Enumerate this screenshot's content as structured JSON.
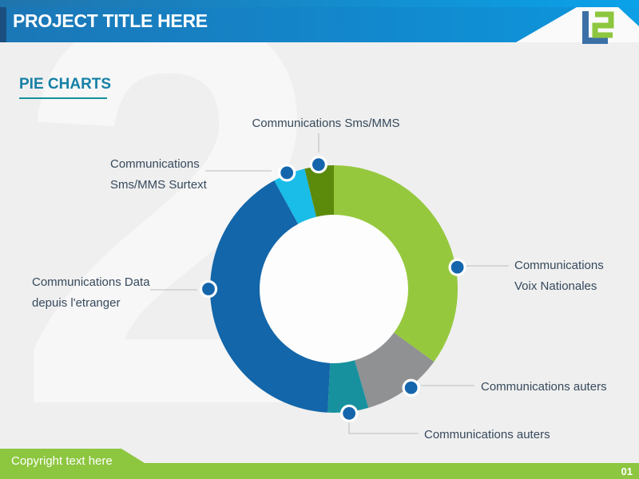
{
  "header": {
    "title": "PROJECT TITLE HERE",
    "logo": {
      "name": "L2 logo",
      "l_color": "#3b70a7",
      "two_color": "#8dc63f"
    }
  },
  "page": {
    "heading": "PIE CHARTS",
    "heading_color": "#1480a5",
    "background_color": "#efefef"
  },
  "footer": {
    "copyright": "Copyright text here",
    "page_number": "01",
    "bar_color": "#8dc63f"
  },
  "chart_data": {
    "type": "pie",
    "subtype": "donut",
    "title": "PIE CHARTS",
    "start_angle_deg": 0,
    "direction": "clockwise",
    "legend_position": "callouts",
    "hole_color": "#fdfdfd",
    "marker_color": "#1565ac",
    "leader_line_color": "#c5c7c9",
    "segments": [
      {
        "label": "Communications Voix Nationales",
        "lines": [
          "Communications",
          "Voix Nationales"
        ],
        "value": 35.0,
        "color": "#96c83e"
      },
      {
        "label": "Communications auters",
        "lines": [
          "Communications auters"
        ],
        "value": 10.5,
        "color": "#8f9193"
      },
      {
        "label": "Communications auters",
        "lines": [
          "Communications auters"
        ],
        "value": 5.3,
        "color": "#17919e"
      },
      {
        "label": "Communications Data depuis l'etranger",
        "lines": [
          "Communications Data",
          "depuis l'etranger"
        ],
        "value": 41.2,
        "color": "#1366a9"
      },
      {
        "label": "Communications Sms/MMS Surtext",
        "lines": [
          "Communications",
          "Sms/MMS Surtext"
        ],
        "value": 4.2,
        "color": "#1abce8"
      },
      {
        "label": "Communications Sms/MMS",
        "lines": [
          "Communications Sms/MMS"
        ],
        "value": 3.8,
        "color": "#5c8a0b"
      }
    ]
  }
}
